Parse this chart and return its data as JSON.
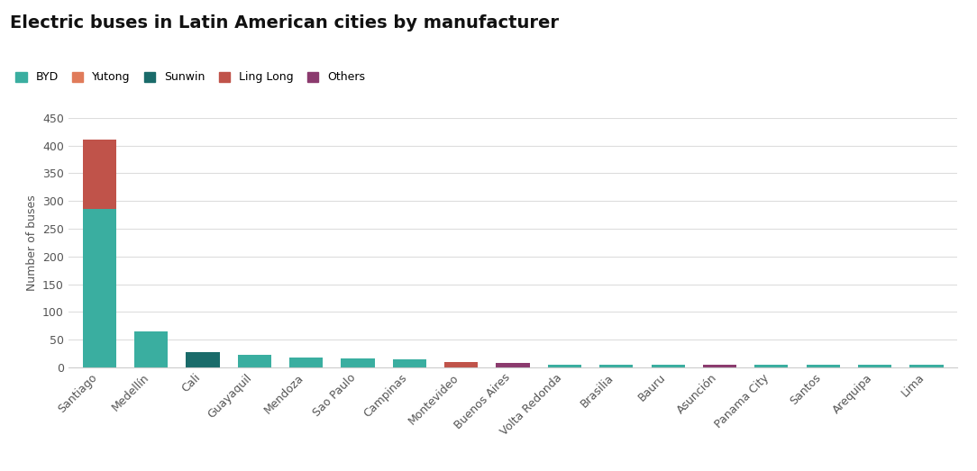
{
  "title": "Electric buses in Latin American cities by manufacturer",
  "ylabel": "Number of buses",
  "background_color": "#ffffff",
  "grid_color": "#dddddd",
  "ylim": [
    0,
    450
  ],
  "yticks": [
    0,
    50,
    100,
    150,
    200,
    250,
    300,
    350,
    400,
    450
  ],
  "cities": [
    "Santiago",
    "Medellín",
    "Cali",
    "Guayaquil",
    "Mendoza",
    "Sao Paulo",
    "Campinas",
    "Montevideo",
    "Buenos Aires",
    "Volta Redonda",
    "Brasilia",
    "Bauru",
    "Asunción",
    "Panama City",
    "Santos",
    "Arequipa",
    "Lima"
  ],
  "manufacturers": [
    "BYD",
    "Yutong",
    "Sunwin",
    "Ling Long",
    "Others"
  ],
  "colors": {
    "BYD": "#3aaea0",
    "Yutong": "#e07b5a",
    "Sunwin": "#1a6b6a",
    "Ling Long": "#c0534a",
    "Others": "#8b3a6e"
  },
  "data": {
    "BYD": [
      285,
      65,
      0,
      22,
      18,
      16,
      14,
      0,
      0,
      5,
      5,
      5,
      0,
      5,
      5,
      5,
      5
    ],
    "Yutong": [
      0,
      0,
      0,
      0,
      0,
      0,
      0,
      0,
      0,
      0,
      0,
      0,
      0,
      0,
      0,
      0,
      0
    ],
    "Sunwin": [
      0,
      0,
      28,
      0,
      0,
      0,
      0,
      0,
      0,
      0,
      0,
      0,
      0,
      0,
      0,
      0,
      0
    ],
    "Ling Long": [
      125,
      0,
      0,
      0,
      0,
      0,
      0,
      10,
      0,
      0,
      0,
      0,
      0,
      0,
      0,
      0,
      0
    ],
    "Others": [
      0,
      0,
      0,
      0,
      0,
      0,
      0,
      0,
      8,
      0,
      0,
      0,
      5,
      0,
      0,
      0,
      0
    ]
  },
  "title_fontsize": 14,
  "tick_fontsize": 9,
  "ylabel_fontsize": 9,
  "text_color": "#555555",
  "title_color": "#111111"
}
